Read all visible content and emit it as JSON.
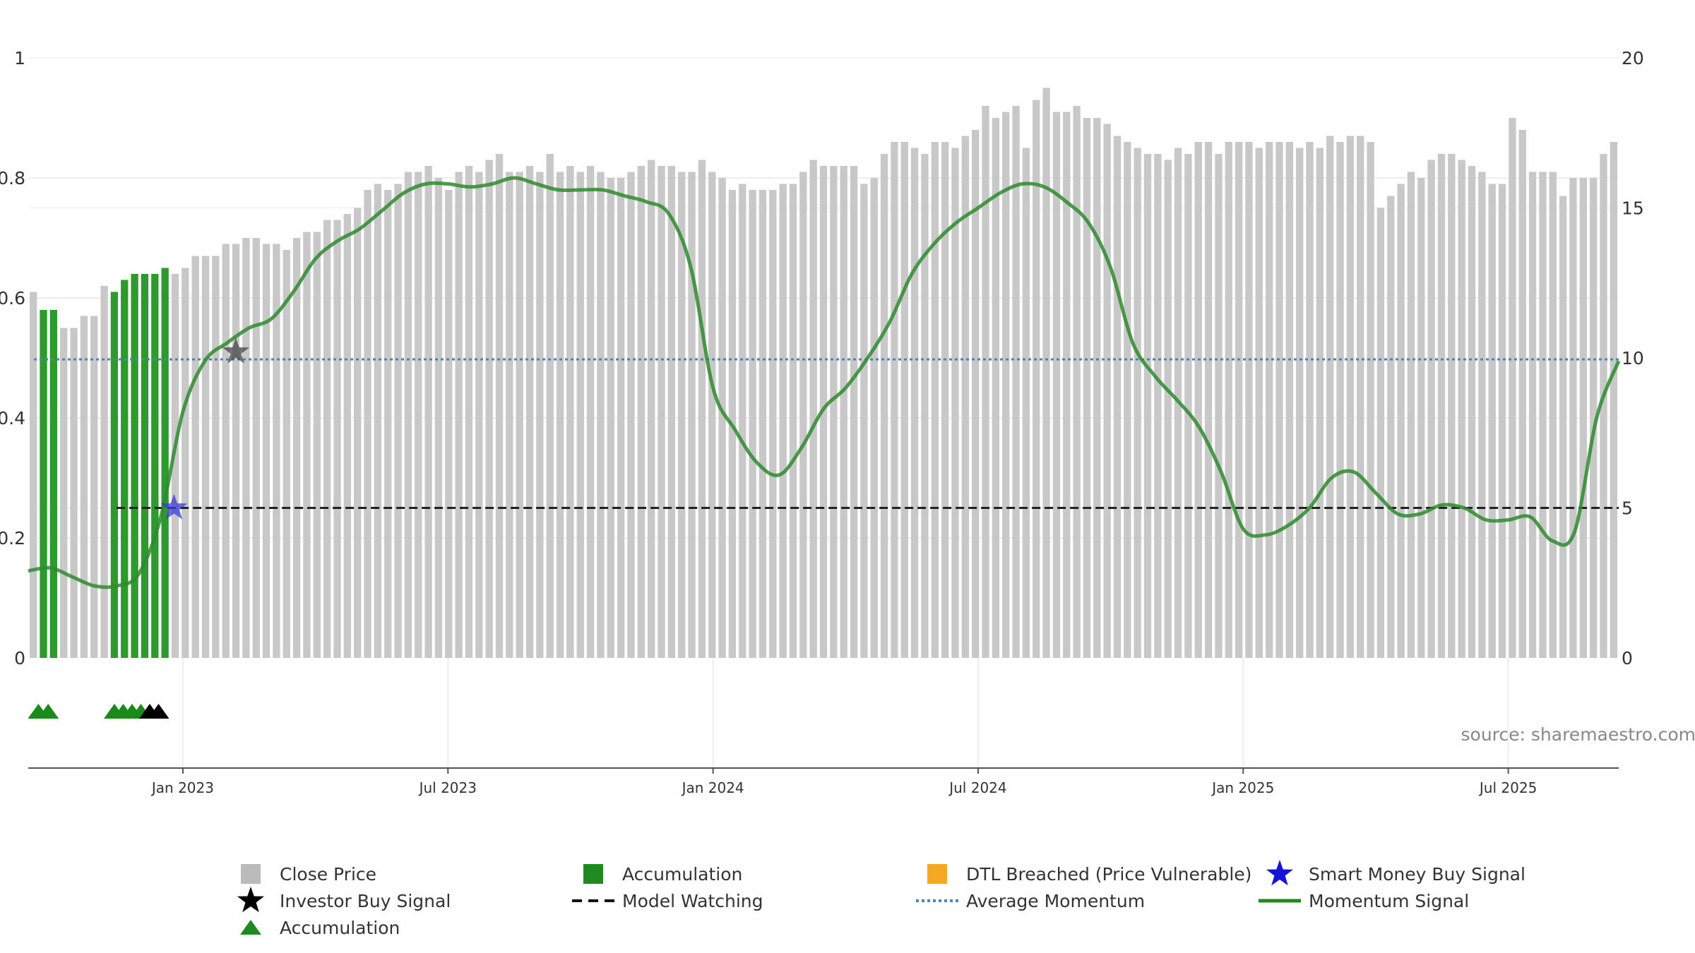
{
  "chart_data": {
    "type": "bar",
    "title": "",
    "source": "source: sharemaestro.com",
    "left_axis": {
      "range": [
        0,
        1
      ],
      "ticks": [
        0,
        0.2,
        0.4,
        0.6,
        0.8,
        1
      ],
      "labels": [
        "0",
        "0.2",
        "0.4",
        "0.6",
        "0.8",
        "1"
      ]
    },
    "right_axis": {
      "range": [
        0,
        20
      ],
      "ticks": [
        0,
        5,
        10,
        15,
        20
      ],
      "labels": [
        "0",
        "5",
        "10",
        "15",
        "20"
      ]
    },
    "x_axis": {
      "start_month": 0,
      "end_month": 36,
      "ticks": [
        {
          "label": "Jan 2023",
          "month": 3.5
        },
        {
          "label": "Jul 2023",
          "month": 9.5
        },
        {
          "label": "Jan 2024",
          "month": 15.5
        },
        {
          "label": "Jul 2024",
          "month": 21.5
        },
        {
          "label": "Jan 2025",
          "month": 27.5
        },
        {
          "label": "Jul 2025",
          "month": 33.5
        }
      ]
    },
    "series": [
      {
        "name": "Close Price",
        "axis": "left",
        "values": [
          0.61,
          0.58,
          0.58,
          0.55,
          0.55,
          0.57,
          0.57,
          0.62,
          0.61,
          0.63,
          0.64,
          0.64,
          0.64,
          0.65,
          0.64,
          0.65,
          0.67,
          0.67,
          0.67,
          0.69,
          0.69,
          0.7,
          0.7,
          0.69,
          0.69,
          0.68,
          0.7,
          0.71,
          0.71,
          0.73,
          0.73,
          0.74,
          0.75,
          0.78,
          0.79,
          0.78,
          0.79,
          0.81,
          0.81,
          0.82,
          0.8,
          0.78,
          0.81,
          0.82,
          0.81,
          0.83,
          0.84,
          0.81,
          0.81,
          0.82,
          0.81,
          0.84,
          0.81,
          0.82,
          0.81,
          0.82,
          0.81,
          0.8,
          0.8,
          0.81,
          0.82,
          0.83,
          0.82,
          0.82,
          0.81,
          0.81,
          0.83,
          0.81,
          0.8,
          0.78,
          0.79,
          0.78,
          0.78,
          0.78,
          0.79,
          0.79,
          0.81,
          0.83,
          0.82,
          0.82,
          0.82,
          0.82,
          0.79,
          0.8,
          0.84,
          0.86,
          0.86,
          0.85,
          0.84,
          0.86,
          0.86,
          0.85,
          0.87,
          0.88,
          0.92,
          0.9,
          0.91,
          0.92,
          0.85,
          0.93,
          0.95,
          0.91,
          0.91,
          0.92,
          0.9,
          0.9,
          0.89,
          0.87,
          0.86,
          0.85,
          0.84,
          0.84,
          0.83,
          0.85,
          0.84,
          0.86,
          0.86,
          0.84,
          0.86,
          0.86,
          0.86,
          0.85,
          0.86,
          0.86,
          0.86,
          0.85,
          0.86,
          0.85,
          0.87,
          0.86,
          0.87,
          0.87,
          0.86,
          0.75,
          0.77,
          0.79,
          0.81,
          0.8,
          0.83,
          0.84,
          0.84,
          0.83,
          0.82,
          0.81,
          0.79,
          0.79,
          0.9,
          0.88,
          0.81,
          0.81,
          0.81,
          0.77,
          0.8,
          0.8,
          0.8,
          0.84,
          0.86
        ]
      },
      {
        "name": "Accumulation",
        "axis": "left",
        "bar_indices": [
          1,
          2,
          8,
          9,
          10,
          11,
          12,
          13
        ]
      },
      {
        "name": "Momentum Signal",
        "axis": "right",
        "x_months": [
          0,
          0.5,
          1,
          1.5,
          2,
          2.5,
          3,
          3.5,
          4,
          4.5,
          5,
          5.5,
          6,
          6.5,
          7,
          7.5,
          8,
          8.5,
          9,
          9.5,
          10,
          10.5,
          11,
          11.5,
          12,
          12.5,
          13,
          13.5,
          14,
          14.5,
          15,
          15.5,
          16,
          16.5,
          17,
          17.5,
          18,
          18.5,
          19,
          19.5,
          20,
          20.5,
          21,
          21.5,
          22,
          22.5,
          23,
          23.5,
          24,
          24.5,
          25,
          25.5,
          26,
          26.5,
          27,
          27.5,
          28,
          28.5,
          29,
          29.5,
          30,
          30.5,
          31,
          31.5,
          32,
          32.5,
          33,
          33.5,
          34,
          34.5,
          35,
          35.5,
          36
        ],
        "values": [
          2.9,
          3.0,
          2.7,
          2.4,
          2.4,
          2.8,
          4.7,
          8.2,
          9.9,
          10.5,
          11.0,
          11.3,
          12.2,
          13.3,
          13.9,
          14.3,
          14.9,
          15.5,
          15.8,
          15.8,
          15.7,
          15.8,
          16.0,
          15.8,
          15.6,
          15.6,
          15.6,
          15.4,
          15.2,
          14.8,
          13.0,
          9.0,
          7.6,
          6.5,
          6.1,
          7.0,
          8.3,
          9.0,
          10.0,
          11.2,
          12.8,
          13.8,
          14.5,
          15.0,
          15.5,
          15.8,
          15.7,
          15.2,
          14.5,
          13.0,
          10.5,
          9.4,
          8.6,
          7.7,
          6.2,
          4.3,
          4.1,
          4.4,
          5.0,
          6.0,
          6.2,
          5.5,
          4.8,
          4.8,
          5.1,
          5.0,
          4.6,
          4.6,
          4.7,
          3.9,
          4.2,
          8.0,
          9.9
        ]
      },
      {
        "name": "Model Watching",
        "axis": "right",
        "value": 5,
        "from_month": 2
      },
      {
        "name": "Average Momentum",
        "axis": "right",
        "value": 9.95
      }
    ],
    "markers": [
      {
        "name": "Investor Buy Signal",
        "type": "star",
        "color": "#444444",
        "month": 4.7,
        "value": 10.2
      },
      {
        "name": "Smart Money Buy Signal",
        "type": "star",
        "color": "#3a3ad8",
        "month": 3.3,
        "value": 5.0
      }
    ],
    "triangles": [
      {
        "month": 0.23,
        "color": "#1a8a1a"
      },
      {
        "month": 0.45,
        "color": "#1a8a1a"
      },
      {
        "month": 1.95,
        "color": "#1a8a1a"
      },
      {
        "month": 2.15,
        "color": "#1a8a1a"
      },
      {
        "month": 2.35,
        "color": "#1a8a1a"
      },
      {
        "month": 2.55,
        "color": "#1a8a1a"
      },
      {
        "month": 2.75,
        "color": "#000000"
      },
      {
        "month": 2.95,
        "color": "#000000"
      }
    ],
    "colors": {
      "close_price": "#c8c8c8",
      "accumulation": "#2e9a2e",
      "dtl_breached": "#f7a823",
      "momentum": "#2e8b2e",
      "average_momentum": "#4a86b0",
      "model_watching": "#222222",
      "smart_money": "#1a1ad8",
      "investor": "#000000",
      "grid": "#eeeeee"
    },
    "legend": [
      {
        "label": "Close Price",
        "symbol": "square",
        "color": "#bbbbbb"
      },
      {
        "label": "Accumulation",
        "symbol": "square",
        "color": "#1f8a1f"
      },
      {
        "label": "DTL Breached (Price Vulnerable)",
        "symbol": "square",
        "color": "#f7a823"
      },
      {
        "label": "Smart Money Buy Signal",
        "symbol": "star",
        "color": "#1414d8"
      },
      {
        "label": "Investor Buy Signal",
        "symbol": "star",
        "color": "#000000"
      },
      {
        "label": "Model Watching",
        "symbol": "dash",
        "color": "#111111"
      },
      {
        "label": "Average Momentum",
        "symbol": "dot",
        "color": "#4a86b0"
      },
      {
        "label": "Momentum Signal",
        "symbol": "line",
        "color": "#1f8a1f"
      },
      {
        "label": "Accumulation",
        "symbol": "triangle",
        "color": "#1f8a1f"
      }
    ]
  }
}
